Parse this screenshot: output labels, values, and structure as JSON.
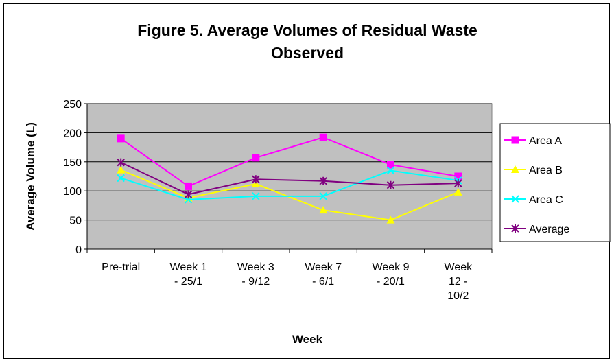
{
  "chart_data": {
    "type": "line",
    "title": "Figure 5. Average Volumes of Residual Waste Observed",
    "x_label": "Week",
    "y_label": "Average Volume (L)",
    "categories": [
      "Pre-trial",
      "Week 1 - 25/1",
      "Week 3 - 9/12",
      "Week 7 - 6/1",
      "Week 9 - 20/1",
      "Week 12 - 10/2"
    ],
    "series": [
      {
        "name": "Area A",
        "color": "#ff00ff",
        "marker": "square",
        "values": [
          190,
          108,
          157,
          192,
          145,
          125
        ]
      },
      {
        "name": "Area B",
        "color": "#ffff00",
        "marker": "triangle",
        "values": [
          136,
          88,
          112,
          67,
          50,
          98
        ]
      },
      {
        "name": "Area C",
        "color": "#00ffff",
        "marker": "x",
        "values": [
          122,
          85,
          91,
          91,
          135,
          118
        ]
      },
      {
        "name": "Average",
        "color": "#800080",
        "marker": "asterisk",
        "values": [
          149,
          94,
          120,
          117,
          110,
          113
        ]
      }
    ],
    "ylim": [
      0,
      250
    ],
    "yticks": [
      0,
      50,
      100,
      150,
      200,
      250
    ],
    "grid": true,
    "legend": "right"
  }
}
